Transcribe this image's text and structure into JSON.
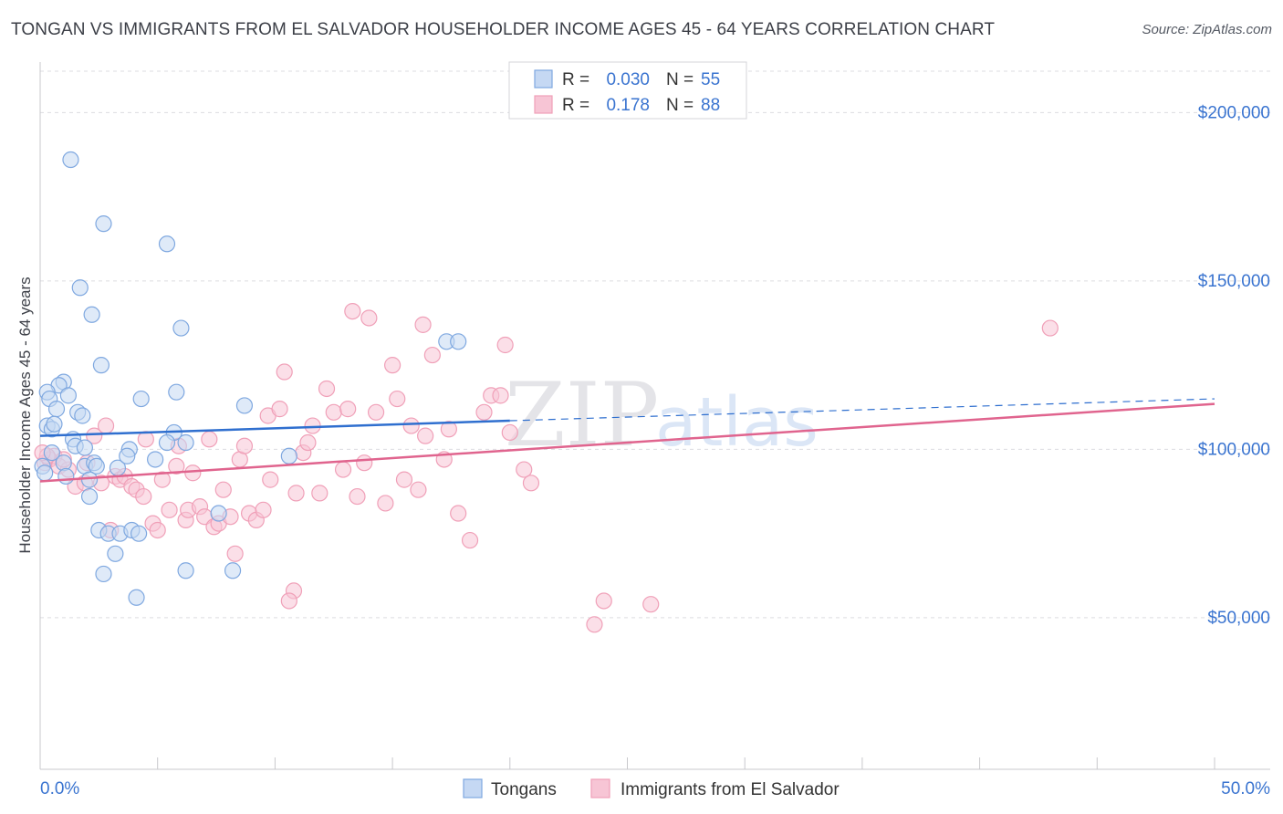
{
  "title": "TONGAN VS IMMIGRANTS FROM EL SALVADOR HOUSEHOLDER INCOME AGES 45 - 64 YEARS CORRELATION CHART",
  "source": "Source: ZipAtlas.com",
  "watermark": {
    "zip": "ZIP",
    "atlas": "atlas"
  },
  "chart_data": {
    "type": "scatter",
    "title": "TONGAN VS IMMIGRANTS FROM EL SALVADOR HOUSEHOLDER INCOME AGES 45 - 64 YEARS CORRELATION CHART",
    "xlabel": "",
    "ylabel": "Householder Income Ages 45 - 64 years",
    "xlim": [
      0,
      50
    ],
    "ylim": [
      5000,
      215000
    ],
    "x_tick_labels": [
      {
        "value": 0,
        "label": "0.0%"
      },
      {
        "value": 50,
        "label": "50.0%"
      }
    ],
    "y_ticks": [
      {
        "value": 50000,
        "label": "$50,000"
      },
      {
        "value": 100000,
        "label": "$100,000"
      },
      {
        "value": 150000,
        "label": "$150,000"
      },
      {
        "value": 200000,
        "label": "$200,000"
      }
    ],
    "x_minor_ticks": [
      0,
      5,
      10,
      15,
      20,
      25,
      30,
      35,
      40,
      45,
      50
    ],
    "grid": "horizontal dashed",
    "legend_position": "top-center",
    "series": [
      {
        "name": "Tongans",
        "color": "#7fa8e0",
        "fill": "#c5d8f3",
        "line_color": "#2f6fcf",
        "stats": {
          "r_label": "R =",
          "r_value": "0.030",
          "n_label": "N =",
          "n_value": "55"
        },
        "trend": {
          "x_start": 0,
          "y_start": 104000,
          "x_solid_end": 20,
          "y_solid_end": 108500,
          "x_end": 50,
          "y_end": 115000
        },
        "points": [
          [
            1.3,
            186000
          ],
          [
            2.7,
            167000
          ],
          [
            5.4,
            161000
          ],
          [
            1.7,
            148000
          ],
          [
            2.2,
            140000
          ],
          [
            6.0,
            136000
          ],
          [
            2.6,
            125000
          ],
          [
            1.0,
            120000
          ],
          [
            0.8,
            119000
          ],
          [
            0.3,
            117000
          ],
          [
            1.2,
            116000
          ],
          [
            0.4,
            115000
          ],
          [
            4.3,
            115000
          ],
          [
            5.8,
            117000
          ],
          [
            0.7,
            112000
          ],
          [
            1.6,
            111000
          ],
          [
            1.8,
            110000
          ],
          [
            8.7,
            113000
          ],
          [
            17.3,
            132000
          ],
          [
            17.8,
            132000
          ],
          [
            0.3,
            107000
          ],
          [
            0.5,
            106000
          ],
          [
            0.6,
            107500
          ],
          [
            1.4,
            103000
          ],
          [
            1.5,
            101000
          ],
          [
            1.9,
            100500
          ],
          [
            3.8,
            100000
          ],
          [
            5.7,
            105000
          ],
          [
            5.4,
            102000
          ],
          [
            6.2,
            102000
          ],
          [
            0.5,
            99000
          ],
          [
            1.0,
            96000
          ],
          [
            1.9,
            95000
          ],
          [
            2.3,
            96000
          ],
          [
            2.4,
            95000
          ],
          [
            3.3,
            94500
          ],
          [
            3.7,
            98000
          ],
          [
            4.9,
            97000
          ],
          [
            10.6,
            98000
          ],
          [
            1.1,
            92000
          ],
          [
            2.1,
            91000
          ],
          [
            2.1,
            86000
          ],
          [
            7.6,
            81000
          ],
          [
            2.5,
            76000
          ],
          [
            2.9,
            75000
          ],
          [
            3.4,
            75000
          ],
          [
            3.9,
            76000
          ],
          [
            4.2,
            75000
          ],
          [
            3.2,
            69000
          ],
          [
            2.7,
            63000
          ],
          [
            6.2,
            64000
          ],
          [
            8.2,
            64000
          ],
          [
            4.1,
            56000
          ],
          [
            0.1,
            95000
          ],
          [
            0.2,
            93000
          ]
        ]
      },
      {
        "name": "Immigrants from El Salvador",
        "color": "#f0a0b8",
        "fill": "#f7c5d5",
        "line_color": "#e0648e",
        "stats": {
          "r_label": "R =",
          "r_value": "0.178",
          "n_label": "N =",
          "n_value": "88"
        },
        "trend": {
          "x_start": 0,
          "y_start": 90500,
          "x_end": 50,
          "y_end": 113500
        },
        "points": [
          [
            0.2,
            96000
          ],
          [
            0.4,
            97000
          ],
          [
            0.6,
            98000
          ],
          [
            0.8,
            95000
          ],
          [
            1.2,
            94000
          ],
          [
            1.5,
            89000
          ],
          [
            1.9,
            90000
          ],
          [
            2.0,
            96000
          ],
          [
            2.3,
            104000
          ],
          [
            2.8,
            107000
          ],
          [
            3.2,
            92000
          ],
          [
            3.4,
            91000
          ],
          [
            3.6,
            92000
          ],
          [
            3.9,
            89000
          ],
          [
            4.1,
            88000
          ],
          [
            4.4,
            86000
          ],
          [
            4.5,
            103000
          ],
          [
            4.8,
            78000
          ],
          [
            5.0,
            76000
          ],
          [
            5.2,
            91000
          ],
          [
            5.5,
            82000
          ],
          [
            5.8,
            95000
          ],
          [
            5.9,
            101000
          ],
          [
            6.2,
            79000
          ],
          [
            6.3,
            82000
          ],
          [
            6.5,
            93000
          ],
          [
            6.8,
            83000
          ],
          [
            7.0,
            80000
          ],
          [
            7.2,
            103000
          ],
          [
            7.4,
            77000
          ],
          [
            7.6,
            78000
          ],
          [
            7.8,
            88000
          ],
          [
            8.1,
            80000
          ],
          [
            8.3,
            69000
          ],
          [
            8.5,
            97000
          ],
          [
            8.7,
            101000
          ],
          [
            8.9,
            81000
          ],
          [
            9.2,
            79000
          ],
          [
            9.5,
            82000
          ],
          [
            9.7,
            110000
          ],
          [
            9.8,
            91000
          ],
          [
            10.2,
            112000
          ],
          [
            10.4,
            123000
          ],
          [
            10.8,
            58000
          ],
          [
            10.9,
            87000
          ],
          [
            11.2,
            99000
          ],
          [
            11.4,
            102000
          ],
          [
            10.6,
            55000
          ],
          [
            11.6,
            107000
          ],
          [
            11.9,
            87000
          ],
          [
            12.2,
            118000
          ],
          [
            12.5,
            111000
          ],
          [
            12.9,
            94000
          ],
          [
            13.1,
            112000
          ],
          [
            13.3,
            141000
          ],
          [
            13.5,
            86000
          ],
          [
            13.8,
            96000
          ],
          [
            14.0,
            139000
          ],
          [
            14.3,
            111000
          ],
          [
            14.7,
            84000
          ],
          [
            15.0,
            125000
          ],
          [
            15.2,
            115000
          ],
          [
            15.5,
            91000
          ],
          [
            15.8,
            107000
          ],
          [
            16.1,
            88000
          ],
          [
            16.3,
            137000
          ],
          [
            16.4,
            104000
          ],
          [
            16.7,
            128000
          ],
          [
            17.2,
            97000
          ],
          [
            17.4,
            106000
          ],
          [
            17.8,
            81000
          ],
          [
            18.3,
            73000
          ],
          [
            18.9,
            111000
          ],
          [
            19.2,
            116000
          ],
          [
            19.6,
            116000
          ],
          [
            19.8,
            131000
          ],
          [
            20.0,
            105000
          ],
          [
            20.6,
            94000
          ],
          [
            20.9,
            90000
          ],
          [
            23.6,
            48000
          ],
          [
            24.0,
            55000
          ],
          [
            26.0,
            54000
          ],
          [
            0.3,
            98000
          ],
          [
            1.0,
            97000
          ],
          [
            2.6,
            90000
          ],
          [
            3.0,
            76000
          ],
          [
            43.0,
            136000
          ],
          [
            0.1,
            99000
          ]
        ]
      }
    ]
  }
}
